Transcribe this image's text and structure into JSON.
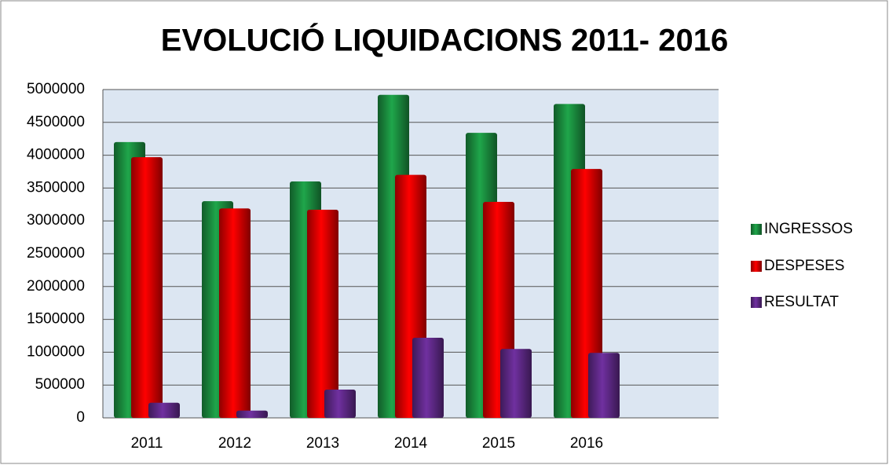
{
  "chart_data": {
    "type": "bar",
    "title": "EVOLUCIÓ LIQUIDACIONS 2011- 2016",
    "categories": [
      "2011",
      "2012",
      "2013",
      "2014",
      "2015",
      "2016",
      null
    ],
    "series": [
      {
        "name": "INGRESSOS",
        "color": "#1fa64a",
        "values": [
          4200000,
          3300000,
          3600000,
          4920000,
          4340000,
          4780000,
          null
        ]
      },
      {
        "name": "DESPESES",
        "color": "#ff0000",
        "values": [
          3970000,
          3190000,
          3170000,
          3700000,
          3290000,
          3790000,
          null
        ]
      },
      {
        "name": "RESULTAT",
        "color": "#7030a0",
        "values": [
          230000,
          110000,
          430000,
          1220000,
          1050000,
          990000,
          null
        ]
      }
    ],
    "ylim": [
      0,
      5000000
    ],
    "yticks": [
      0,
      500000,
      1000000,
      1500000,
      2000000,
      2500000,
      3000000,
      3500000,
      4000000,
      4500000,
      5000000
    ],
    "grid": true,
    "legend": "right"
  }
}
